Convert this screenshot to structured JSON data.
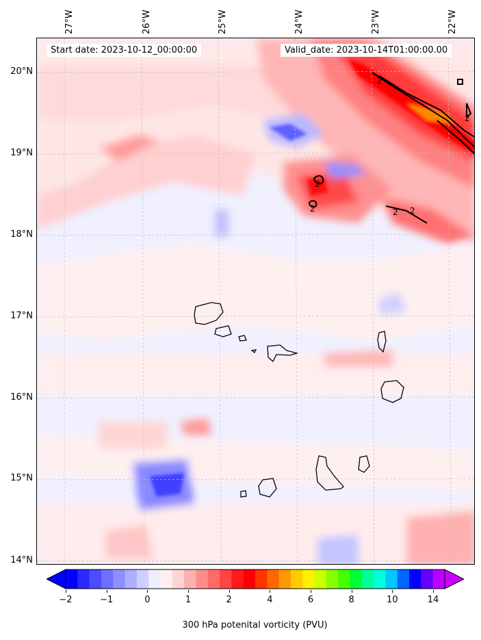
{
  "map": {
    "start_date": "Start date: 2023-10-12_00:00:00",
    "valid_date": "Valid_date: 2023-10-14T01:00:00.00",
    "lon_labels": [
      "27°W",
      "26°W",
      "25°W",
      "24°W",
      "23°W",
      "22°W"
    ],
    "lat_labels": [
      "20°N",
      "19°N",
      "18°N",
      "17°N",
      "16°N",
      "15°N",
      "14°N"
    ],
    "contour_label": "2",
    "lon_range": [
      -27.35,
      -21.7
    ],
    "lat_range": [
      13.95,
      20.4
    ]
  },
  "colorbar": {
    "label": "300 hPa potenital vorticity (PVU)",
    "ticks": [
      "−2",
      "−1",
      "0",
      "1",
      "2",
      "4",
      "6",
      "8",
      "10",
      "14"
    ],
    "colors": [
      "#0000ff",
      "#2a2aff",
      "#4d4dff",
      "#6f6fff",
      "#8f8fff",
      "#aeaeff",
      "#cfcfff",
      "#eeeeff",
      "#ffefef",
      "#ffd4d4",
      "#ffb0b0",
      "#ff8c8c",
      "#ff6a6a",
      "#ff4444",
      "#ff1a1a",
      "#ff0000",
      "#ff3300",
      "#ff6600",
      "#ff9900",
      "#ffcc00",
      "#fff000",
      "#ccff00",
      "#88ff00",
      "#44ff00",
      "#00ff33",
      "#00ff99",
      "#00ffdd",
      "#00c8ff",
      "#0066ff",
      "#0000ff",
      "#6600ff",
      "#bb00ff"
    ],
    "under_color": "#0000ff",
    "over_color": "#cc00ff"
  }
}
